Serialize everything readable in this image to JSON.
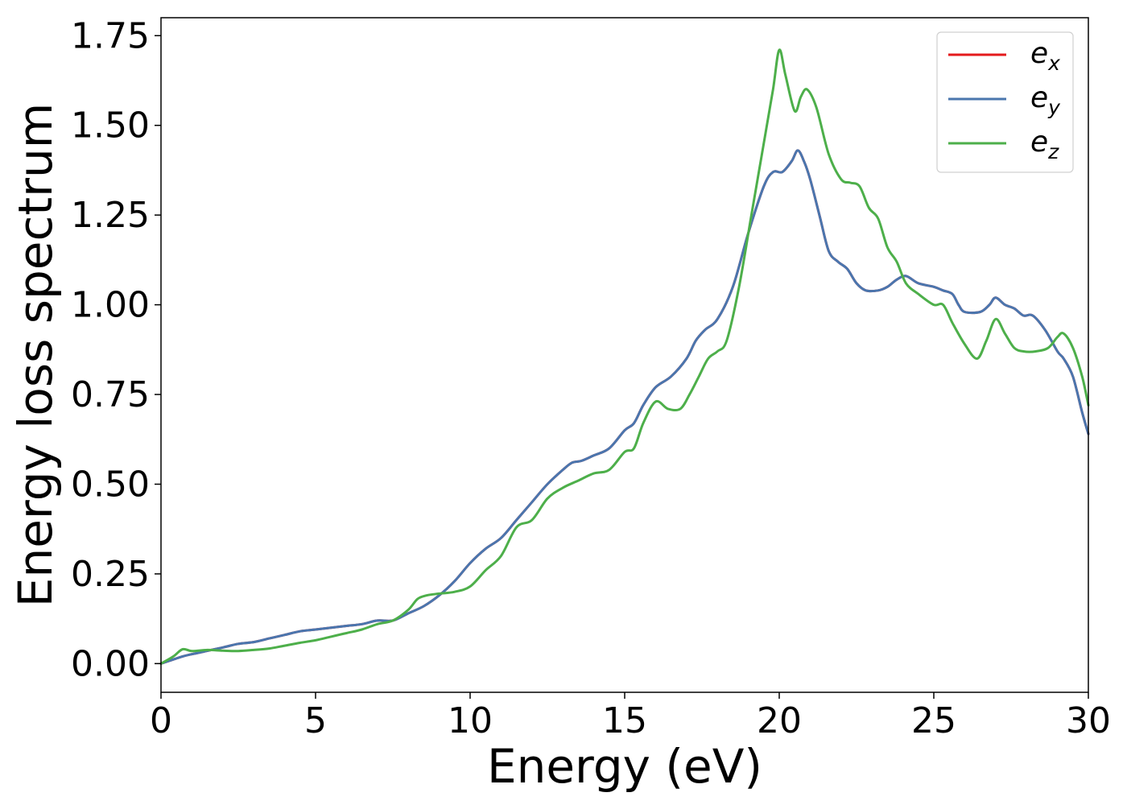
{
  "chart_data": {
    "type": "line",
    "xlabel": "Energy (eV)",
    "ylabel": "Energy loss spectrum",
    "xlim": [
      0,
      30
    ],
    "ylim": [
      -0.08,
      1.8
    ],
    "xticks": [
      0,
      5,
      10,
      15,
      20,
      25,
      30
    ],
    "xtick_labels": [
      "0",
      "5",
      "10",
      "15",
      "20",
      "25",
      "30"
    ],
    "yticks": [
      0,
      0.25,
      0.5,
      0.75,
      1.0,
      1.25,
      1.5,
      1.75
    ],
    "ytick_labels": [
      "0.00",
      "0.25",
      "0.50",
      "0.75",
      "1.00",
      "1.25",
      "1.50",
      "1.75"
    ],
    "grid": false,
    "legend_position": "top-right",
    "series": [
      {
        "name": "e",
        "sub": "x",
        "color": "#e41a1c",
        "x": [
          0,
          0.7,
          1.2,
          2,
          2.5,
          3,
          3.5,
          4,
          4.5,
          5,
          5.5,
          6,
          6.5,
          7,
          7.5,
          8,
          8.5,
          9,
          9.5,
          10,
          10.5,
          11,
          11.5,
          12,
          12.5,
          13,
          13.3,
          13.6,
          14,
          14.5,
          15,
          15.3,
          15.6,
          16,
          16.5,
          17,
          17.3,
          17.6,
          18,
          18.5,
          19,
          19.5,
          19.8,
          20.1,
          20.4,
          20.6,
          20.8,
          21,
          21.3,
          21.6,
          21.9,
          22.2,
          22.5,
          22.8,
          23.2,
          23.5,
          23.8,
          24.1,
          24.5,
          25,
          25.3,
          25.6,
          25.8,
          26,
          26.5,
          26.8,
          27,
          27.3,
          27.6,
          27.9,
          28.2,
          28.6,
          29,
          29.2,
          29.5,
          29.8,
          30
        ],
        "y": [
          0,
          0.02,
          0.03,
          0.045,
          0.055,
          0.06,
          0.07,
          0.08,
          0.09,
          0.095,
          0.1,
          0.105,
          0.11,
          0.12,
          0.12,
          0.14,
          0.16,
          0.19,
          0.23,
          0.28,
          0.32,
          0.35,
          0.4,
          0.45,
          0.5,
          0.54,
          0.56,
          0.565,
          0.58,
          0.6,
          0.65,
          0.67,
          0.72,
          0.77,
          0.8,
          0.85,
          0.9,
          0.93,
          0.96,
          1.05,
          1.2,
          1.33,
          1.37,
          1.37,
          1.4,
          1.43,
          1.4,
          1.35,
          1.25,
          1.15,
          1.12,
          1.1,
          1.06,
          1.04,
          1.04,
          1.05,
          1.07,
          1.08,
          1.06,
          1.05,
          1.04,
          1.03,
          1.0,
          0.98,
          0.98,
          1.0,
          1.02,
          1.0,
          0.99,
          0.97,
          0.97,
          0.93,
          0.87,
          0.85,
          0.8,
          0.7,
          0.64
        ]
      },
      {
        "name": "e",
        "sub": "y",
        "color": "#4a76ae",
        "x": [
          0,
          0.7,
          1.2,
          2,
          2.5,
          3,
          3.5,
          4,
          4.5,
          5,
          5.5,
          6,
          6.5,
          7,
          7.5,
          8,
          8.5,
          9,
          9.5,
          10,
          10.5,
          11,
          11.5,
          12,
          12.5,
          13,
          13.3,
          13.6,
          14,
          14.5,
          15,
          15.3,
          15.6,
          16,
          16.5,
          17,
          17.3,
          17.6,
          18,
          18.5,
          19,
          19.5,
          19.8,
          20.1,
          20.4,
          20.6,
          20.8,
          21,
          21.3,
          21.6,
          21.9,
          22.2,
          22.5,
          22.8,
          23.2,
          23.5,
          23.8,
          24.1,
          24.5,
          25,
          25.3,
          25.6,
          25.8,
          26,
          26.5,
          26.8,
          27,
          27.3,
          27.6,
          27.9,
          28.2,
          28.6,
          29,
          29.2,
          29.5,
          29.8,
          30
        ],
        "y": [
          0,
          0.02,
          0.03,
          0.045,
          0.055,
          0.06,
          0.07,
          0.08,
          0.09,
          0.095,
          0.1,
          0.105,
          0.11,
          0.12,
          0.12,
          0.14,
          0.16,
          0.19,
          0.23,
          0.28,
          0.32,
          0.35,
          0.4,
          0.45,
          0.5,
          0.54,
          0.56,
          0.565,
          0.58,
          0.6,
          0.65,
          0.67,
          0.72,
          0.77,
          0.8,
          0.85,
          0.9,
          0.93,
          0.96,
          1.05,
          1.2,
          1.33,
          1.37,
          1.37,
          1.4,
          1.43,
          1.4,
          1.35,
          1.25,
          1.15,
          1.12,
          1.1,
          1.06,
          1.04,
          1.04,
          1.05,
          1.07,
          1.08,
          1.06,
          1.05,
          1.04,
          1.03,
          1.0,
          0.98,
          0.98,
          1.0,
          1.02,
          1.0,
          0.99,
          0.97,
          0.97,
          0.93,
          0.87,
          0.85,
          0.8,
          0.7,
          0.64
        ]
      },
      {
        "name": "e",
        "sub": "z",
        "color": "#4daf4a",
        "x": [
          0,
          0.4,
          0.7,
          1,
          1.5,
          2,
          2.5,
          3,
          3.5,
          4,
          4.5,
          5,
          5.5,
          6,
          6.5,
          7,
          7.5,
          8,
          8.3,
          8.6,
          9,
          9.5,
          10,
          10.5,
          11,
          11.5,
          12,
          12.5,
          13,
          13.5,
          14,
          14.5,
          15,
          15.3,
          15.6,
          16,
          16.4,
          16.8,
          17.1,
          17.4,
          17.7,
          18,
          18.3,
          18.7,
          19.1,
          19.5,
          19.8,
          20,
          20.2,
          20.5,
          20.7,
          20.9,
          21.2,
          21.6,
          22,
          22.3,
          22.6,
          22.9,
          23.2,
          23.5,
          23.8,
          24.1,
          24.5,
          25,
          25.3,
          25.6,
          26,
          26.4,
          26.7,
          27,
          27.3,
          27.6,
          27.9,
          28.3,
          28.7,
          29,
          29.2,
          29.5,
          29.8,
          30
        ],
        "y": [
          0,
          0.02,
          0.04,
          0.035,
          0.038,
          0.036,
          0.035,
          0.038,
          0.042,
          0.05,
          0.058,
          0.065,
          0.075,
          0.085,
          0.095,
          0.11,
          0.12,
          0.15,
          0.18,
          0.19,
          0.195,
          0.2,
          0.215,
          0.26,
          0.3,
          0.38,
          0.4,
          0.46,
          0.49,
          0.51,
          0.53,
          0.54,
          0.59,
          0.6,
          0.67,
          0.73,
          0.71,
          0.71,
          0.75,
          0.8,
          0.85,
          0.87,
          0.9,
          1.05,
          1.25,
          1.45,
          1.6,
          1.71,
          1.64,
          1.54,
          1.58,
          1.6,
          1.55,
          1.42,
          1.35,
          1.34,
          1.33,
          1.27,
          1.24,
          1.16,
          1.12,
          1.06,
          1.03,
          1.0,
          1.0,
          0.95,
          0.89,
          0.85,
          0.9,
          0.96,
          0.92,
          0.88,
          0.87,
          0.87,
          0.88,
          0.91,
          0.92,
          0.88,
          0.8,
          0.72
        ]
      }
    ]
  }
}
